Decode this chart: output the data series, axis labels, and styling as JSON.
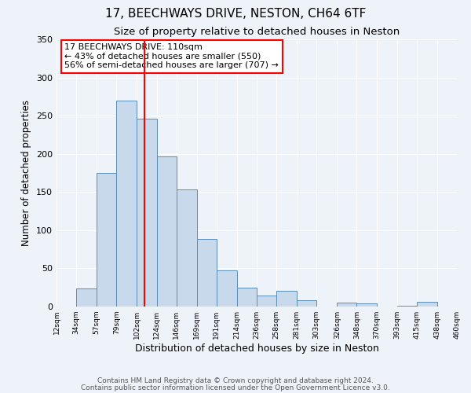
{
  "title": "17, BEECHWAYS DRIVE, NESTON, CH64 6TF",
  "subtitle": "Size of property relative to detached houses in Neston",
  "xlabel": "Distribution of detached houses by size in Neston",
  "ylabel": "Number of detached properties",
  "bin_edges": [
    12,
    34,
    57,
    79,
    102,
    124,
    146,
    169,
    191,
    214,
    236,
    258,
    281,
    303,
    326,
    348,
    370,
    393,
    415,
    438,
    460
  ],
  "bin_heights": [
    0,
    24,
    175,
    270,
    246,
    197,
    153,
    89,
    47,
    25,
    14,
    21,
    8,
    0,
    5,
    4,
    0,
    1,
    6,
    0
  ],
  "bar_facecolor": "#c9d9ec",
  "bar_edgecolor": "#5b8db8",
  "vline_x": 110,
  "vline_color": "red",
  "annotation_line1": "17 BEECHWAYS DRIVE: 110sqm",
  "annotation_line2": "← 43% of detached houses are smaller (550)",
  "annotation_line3": "56% of semi-detached houses are larger (707) →",
  "ylim": [
    0,
    350
  ],
  "yticks": [
    0,
    50,
    100,
    150,
    200,
    250,
    300,
    350
  ],
  "xtick_labels": [
    "12sqm",
    "34sqm",
    "57sqm",
    "79sqm",
    "102sqm",
    "124sqm",
    "146sqm",
    "169sqm",
    "191sqm",
    "214sqm",
    "236sqm",
    "258sqm",
    "281sqm",
    "303sqm",
    "326sqm",
    "348sqm",
    "370sqm",
    "393sqm",
    "415sqm",
    "438sqm",
    "460sqm"
  ],
  "footer_line1": "Contains HM Land Registry data © Crown copyright and database right 2024.",
  "footer_line2": "Contains public sector information licensed under the Open Government Licence v3.0.",
  "title_fontsize": 11,
  "subtitle_fontsize": 9.5,
  "xlabel_fontsize": 9,
  "ylabel_fontsize": 8.5,
  "annotation_fontsize": 8,
  "footer_fontsize": 6.5,
  "background_color": "#eef2f9",
  "plot_bg_color": "#eef2f9"
}
